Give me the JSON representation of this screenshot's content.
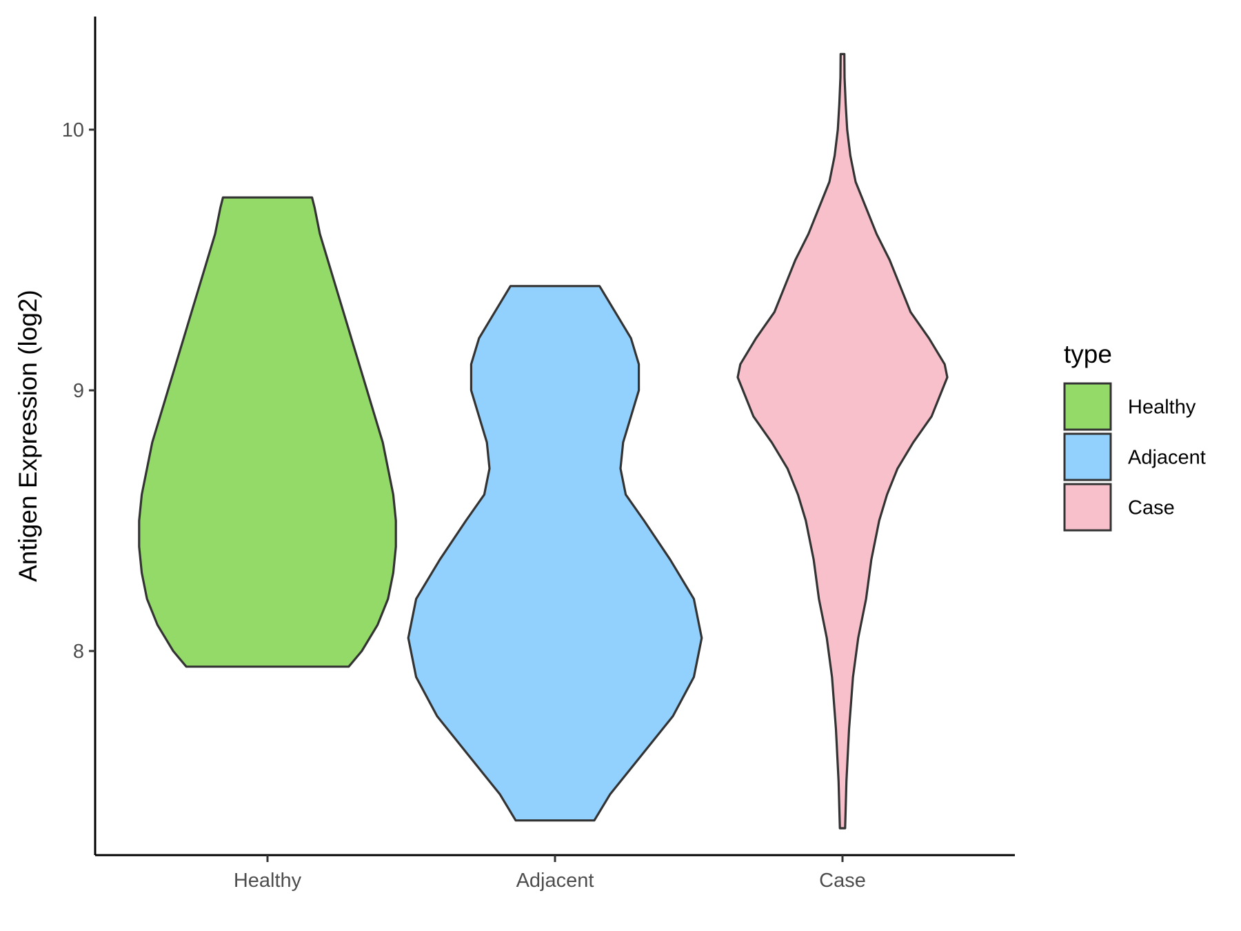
{
  "chart_data": {
    "type": "violin",
    "title": "",
    "xlabel": "",
    "ylabel": "Antigen Expression (log2)",
    "ylim": [
      7.3,
      10.5
    ],
    "y_ticks": [
      8,
      9,
      10
    ],
    "categories": [
      "Healthy",
      "Adjacent",
      "Case"
    ],
    "grid": false,
    "legend": {
      "title": "type",
      "position": "right",
      "entries": [
        {
          "label": "Healthy",
          "color": "#93DA69"
        },
        {
          "label": "Adjacent",
          "color": "#92D1FD"
        },
        {
          "label": "Case",
          "color": "#F7C0CB"
        }
      ]
    },
    "series": [
      {
        "name": "Healthy",
        "color": "#93DA69",
        "ymin": 7.94,
        "ymax": 9.74,
        "profile": [
          [
            7.94,
            0.31
          ],
          [
            8.0,
            0.36
          ],
          [
            8.1,
            0.42
          ],
          [
            8.2,
            0.46
          ],
          [
            8.3,
            0.48
          ],
          [
            8.4,
            0.49
          ],
          [
            8.5,
            0.49
          ],
          [
            8.6,
            0.48
          ],
          [
            8.7,
            0.46
          ],
          [
            8.8,
            0.44
          ],
          [
            8.9,
            0.41
          ],
          [
            9.0,
            0.38
          ],
          [
            9.1,
            0.35
          ],
          [
            9.2,
            0.32
          ],
          [
            9.3,
            0.29
          ],
          [
            9.4,
            0.26
          ],
          [
            9.5,
            0.23
          ],
          [
            9.6,
            0.2
          ],
          [
            9.7,
            0.18
          ],
          [
            9.74,
            0.17
          ]
        ]
      },
      {
        "name": "Adjacent",
        "color": "#92D1FD",
        "ymin": 7.35,
        "ymax": 9.4,
        "profile": [
          [
            7.35,
            0.15
          ],
          [
            7.45,
            0.21
          ],
          [
            7.6,
            0.33
          ],
          [
            7.75,
            0.45
          ],
          [
            7.9,
            0.53
          ],
          [
            8.05,
            0.56
          ],
          [
            8.2,
            0.53
          ],
          [
            8.35,
            0.44
          ],
          [
            8.5,
            0.34
          ],
          [
            8.6,
            0.27
          ],
          [
            8.7,
            0.25
          ],
          [
            8.8,
            0.26
          ],
          [
            8.9,
            0.29
          ],
          [
            9.0,
            0.32
          ],
          [
            9.1,
            0.32
          ],
          [
            9.2,
            0.29
          ],
          [
            9.3,
            0.23
          ],
          [
            9.4,
            0.17
          ]
        ]
      },
      {
        "name": "Case",
        "color": "#F7C0CB",
        "ymin": 7.32,
        "ymax": 10.29,
        "profile": [
          [
            7.32,
            0.01
          ],
          [
            7.5,
            0.015
          ],
          [
            7.7,
            0.025
          ],
          [
            7.9,
            0.04
          ],
          [
            8.05,
            0.06
          ],
          [
            8.2,
            0.09
          ],
          [
            8.35,
            0.11
          ],
          [
            8.5,
            0.14
          ],
          [
            8.6,
            0.17
          ],
          [
            8.7,
            0.21
          ],
          [
            8.8,
            0.27
          ],
          [
            8.9,
            0.34
          ],
          [
            9.0,
            0.38
          ],
          [
            9.05,
            0.4
          ],
          [
            9.1,
            0.39
          ],
          [
            9.2,
            0.33
          ],
          [
            9.3,
            0.26
          ],
          [
            9.4,
            0.22
          ],
          [
            9.5,
            0.18
          ],
          [
            9.6,
            0.13
          ],
          [
            9.7,
            0.09
          ],
          [
            9.8,
            0.05
          ],
          [
            9.9,
            0.03
          ],
          [
            10.0,
            0.018
          ],
          [
            10.1,
            0.012
          ],
          [
            10.2,
            0.008
          ],
          [
            10.29,
            0.007
          ]
        ]
      }
    ]
  }
}
